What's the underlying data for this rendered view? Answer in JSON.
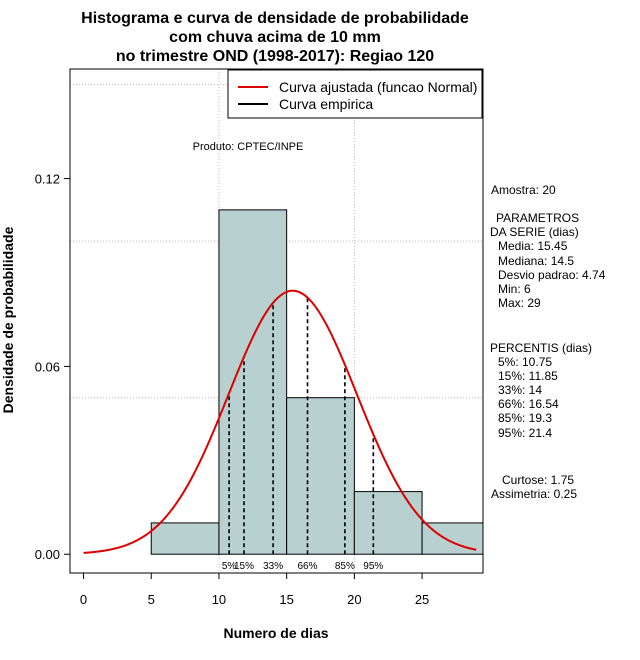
{
  "chart_data": {
    "type": "bar",
    "title": [
      "Histograma e curva de densidade de probabilidade",
      "com chuva acima de 10 mm",
      "no trimestre OND (1998-2017): Regiao 120"
    ],
    "xlabel": "Numero de dias",
    "ylabel": "Densidade de probabilidade",
    "xlim": [
      -1,
      29.5
    ],
    "ylim": [
      -0.006,
      0.155
    ],
    "x_ticks": [
      0,
      5,
      10,
      15,
      20,
      25
    ],
    "y_ticks": [
      0.0,
      0.06,
      0.12
    ],
    "y_tick_labels": [
      "0.00",
      "0.06",
      "0.12"
    ],
    "grid_x": [
      10,
      20
    ],
    "grid_y": [
      0.05,
      0.1,
      0.15
    ],
    "bins": [
      {
        "from": 5,
        "to": 10,
        "density": 0.01
      },
      {
        "from": 10,
        "to": 15,
        "density": 0.11
      },
      {
        "from": 15,
        "to": 20,
        "density": 0.05
      },
      {
        "from": 20,
        "to": 25,
        "density": 0.02
      },
      {
        "from": 25,
        "to": 30,
        "density": 0.01
      }
    ],
    "normal_fit": {
      "mean": 15.45,
      "sd": 4.74,
      "from": 0,
      "to": 29,
      "color": "#dd0000"
    },
    "bar_color": "#b9d0d0",
    "percentile_lines": [
      {
        "label": "5%",
        "x": 10.75
      },
      {
        "label": "15%",
        "x": 11.85
      },
      {
        "label": "33%",
        "x": 14
      },
      {
        "label": "66%",
        "x": 16.54
      },
      {
        "label": "85%",
        "x": 19.3
      },
      {
        "label": "95%",
        "x": 21.4
      }
    ],
    "legend": [
      {
        "label": "Curva ajustada (funcao Normal)",
        "color": "#dd0000"
      },
      {
        "label": "Curva empirica",
        "color": "#000000"
      }
    ],
    "legend_position": "top-right",
    "annotation": "Produto: CPTEC/INPE"
  },
  "side_panel": {
    "amostra": "Amostra: 20",
    "param_title_1": "PARAMETROS",
    "param_title_2": "DA SERIE (dias)",
    "params": [
      "Media: 15.45",
      "Mediana: 14.5",
      "Desvio padrao: 4.74",
      "Min: 6",
      "Max: 29"
    ],
    "perc_title": "PERCENTIS (dias)",
    "percentis": [
      "5%: 10.75",
      "15%: 11.85",
      "33%: 14",
      "66%: 16.54",
      "85%: 19.3",
      "95%: 21.4"
    ],
    "curtose": "Curtose: 1.75",
    "assimetria": "Assimetria: 0.25"
  }
}
